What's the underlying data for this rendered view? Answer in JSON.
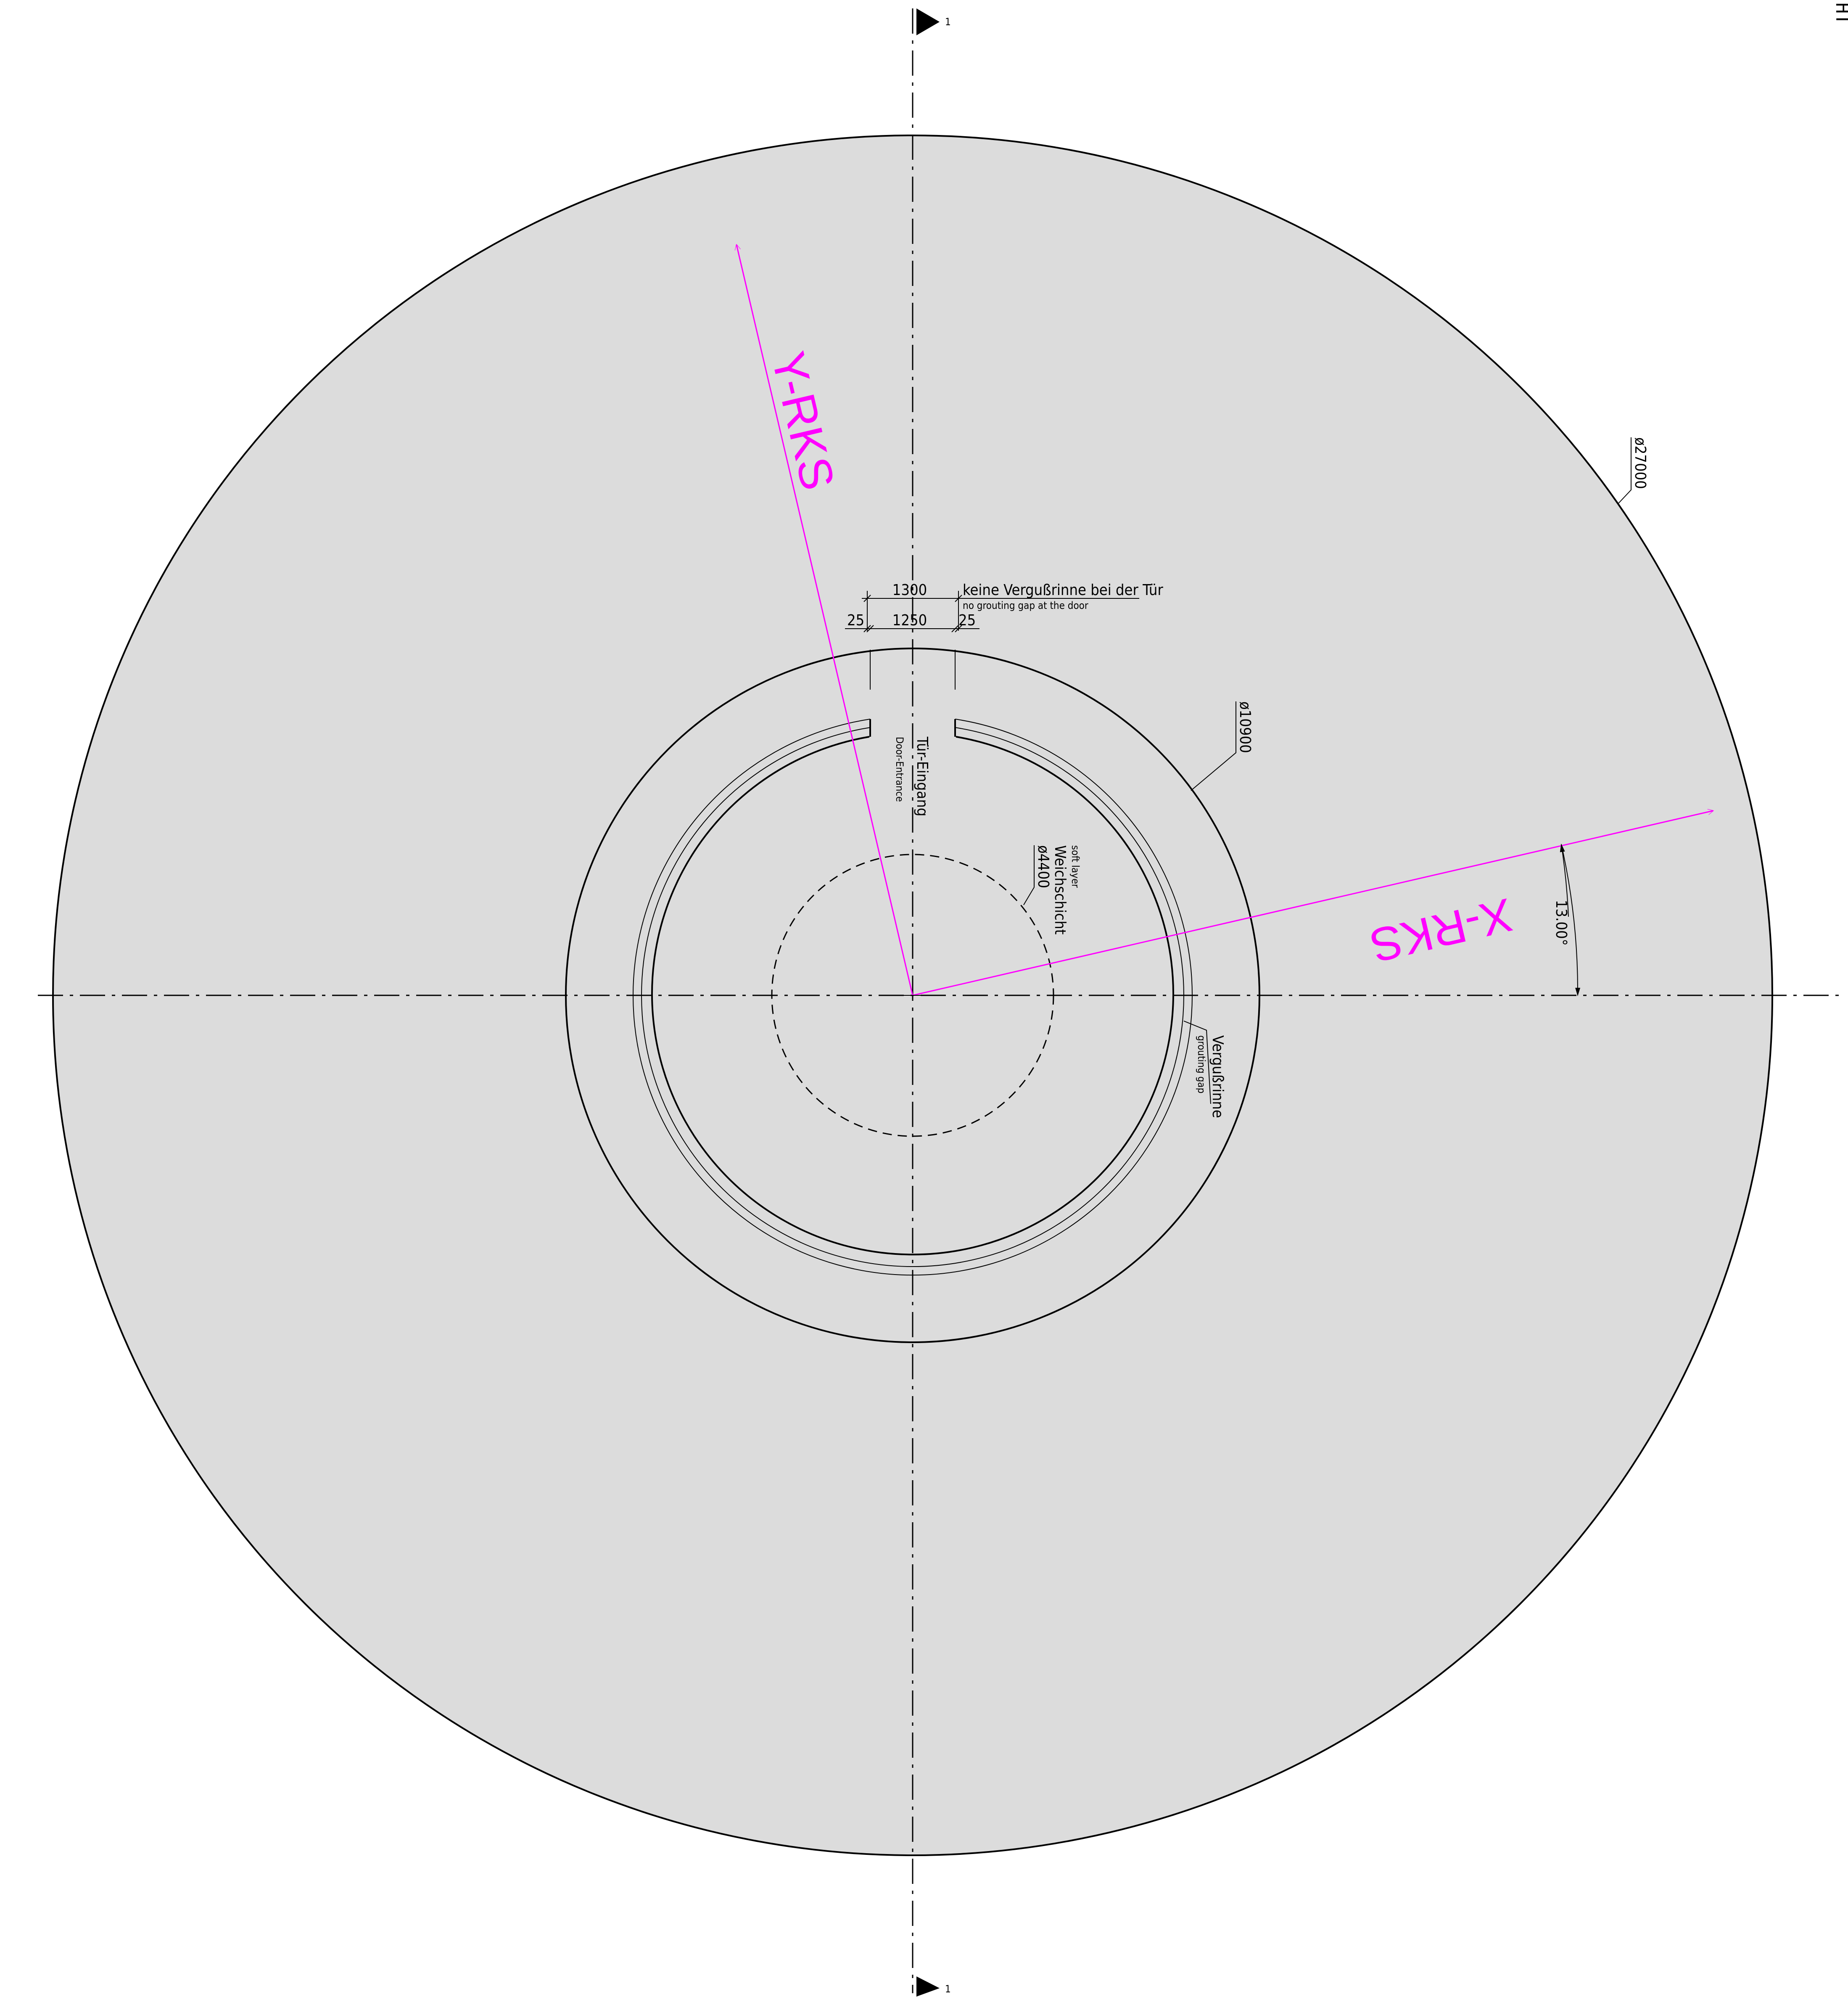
{
  "corner_label": "HT",
  "foundation": {
    "diameter_label": "ø27000"
  },
  "tower": {
    "diameter_label": "ø10900"
  },
  "soft_layer": {
    "diameter_label": "ø4400",
    "label_de": "Weichschicht",
    "label_en": "soft layer"
  },
  "grouting_gap": {
    "label_de": "Vergußrinne",
    "label_en": "grouting gap"
  },
  "door": {
    "label_de": "Tür-Eingang",
    "label_en": "Door-Entrance",
    "note_de": "keine Vergußrinne bei der Tür",
    "note_en": "no grouting gap at the door",
    "dim_total": "1300",
    "dim_opening": "1250",
    "dim_left": "25",
    "dim_right": "25"
  },
  "axes": {
    "x_label": "X-RKS",
    "y_label": "Y-RKS",
    "rotation_label": "13.00°"
  },
  "section_marks": {
    "top": "1",
    "bottom": "1"
  },
  "colors": {
    "fill": "#dcdcdc",
    "line": "#000000",
    "axis": "#ff00ff"
  }
}
